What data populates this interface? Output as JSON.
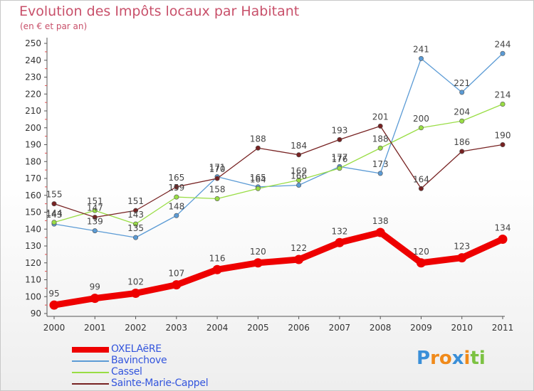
{
  "title": "Evolution des Impôts locaux par Habitant",
  "subtitle": "(en € et par an)",
  "logo_text": "Proxiti",
  "chart_data": {
    "type": "line",
    "title": "Evolution des Impôts locaux par Habitant",
    "subtitle": "(en € et par an)",
    "xlabel": "",
    "ylabel": "",
    "ylim": [
      90,
      250
    ],
    "y_tick_step": 10,
    "grid": false,
    "legend_position": "bottom-left",
    "categories": [
      "2000",
      "2001",
      "2002",
      "2003",
      "2004",
      "2005",
      "2006",
      "2007",
      "2008",
      "2009",
      "2010",
      "2011"
    ],
    "series": [
      {
        "name": "OXELAëRE",
        "color": "#ee0000",
        "values": [
          95,
          99,
          102,
          107,
          116,
          120,
          122,
          132,
          138,
          120,
          123,
          134
        ]
      },
      {
        "name": "Bavinchove",
        "color": "#5b9bd5",
        "values": [
          143,
          139,
          135,
          148,
          171,
          165,
          166,
          177,
          173,
          241,
          221,
          244
        ]
      },
      {
        "name": "Cassel",
        "color": "#99dd44",
        "values": [
          144,
          151,
          143,
          159,
          158,
          164,
          169,
          176,
          188,
          200,
          204,
          214
        ]
      },
      {
        "name": "Sainte-Marie-Cappel",
        "color": "#772222",
        "values": [
          155,
          147,
          151,
          165,
          170,
          188,
          184,
          193,
          201,
          164,
          186,
          190
        ]
      }
    ]
  }
}
